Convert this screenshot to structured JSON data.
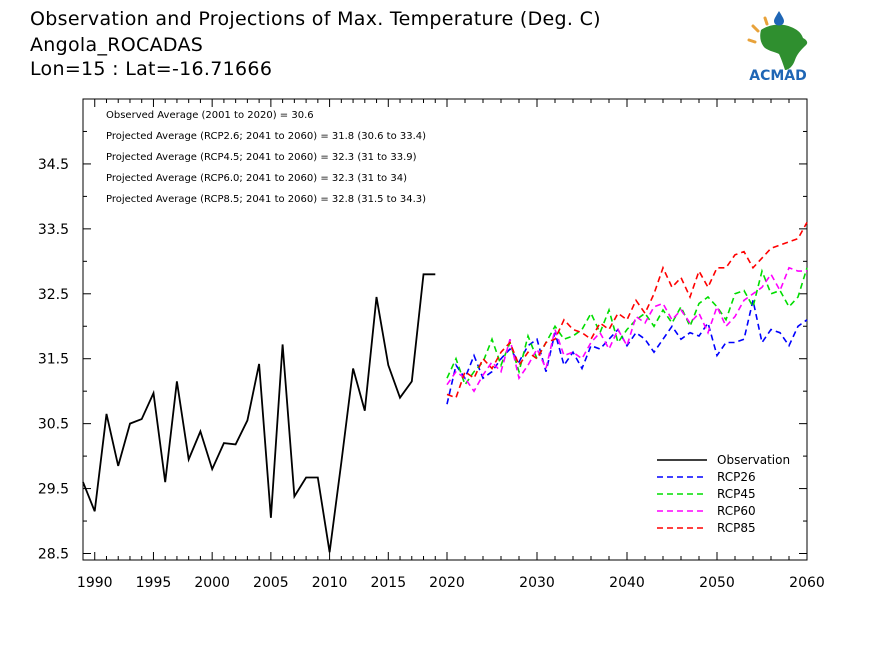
{
  "header": {
    "title_line1": "Observation and Projections of Max. Temperature (Deg. C)",
    "title_line2": "Angola_ROCADAS",
    "title_line3": "Lon=15 : Lat=-16.71666"
  },
  "logo": {
    "text": "ACMAD",
    "color": "#1f66b5",
    "map_color": "#2f8f2f",
    "accent_color": "#e8a23a"
  },
  "chart_data": {
    "type": "line",
    "xlim": [
      1989,
      2060
    ],
    "ylim": [
      28.4,
      35.5
    ],
    "x_ticks": [
      1990,
      1995,
      2000,
      2005,
      2010,
      2015,
      2020,
      2030,
      2040,
      2050,
      2060
    ],
    "y_ticks": [
      28.5,
      29.5,
      30.5,
      31.5,
      32.5,
      33.5,
      34.5
    ],
    "annotations": [
      "Observed Average (2001 to 2020) = 30.6",
      "Projected Average (RCP2.6; 2041 to 2060) = 31.8 (30.6 to 33.4)",
      "Projected Average (RCP4.5; 2041 to 2060) = 32.3 (31 to 33.9)",
      "Projected Average (RCP6.0; 2041 to 2060) = 32.3 (31 to 34)",
      "Projected Average (RCP8.5; 2041 to 2060) = 32.8 (31.5 to 34.3)"
    ],
    "legend_position": "bottom-right",
    "series": [
      {
        "name": "Observation",
        "color": "#000000",
        "dashed": false,
        "x": [
          1989,
          1990,
          1991,
          1992,
          1993,
          1994,
          1995,
          1996,
          1997,
          1998,
          1999,
          2000,
          2001,
          2002,
          2003,
          2004,
          2005,
          2006,
          2007,
          2008,
          2009,
          2010,
          2011,
          2012,
          2013,
          2014,
          2015,
          2016,
          2017,
          2018,
          2019
        ],
        "y": [
          29.6,
          29.15,
          30.65,
          29.85,
          30.5,
          30.57,
          30.97,
          29.6,
          31.15,
          29.95,
          30.38,
          29.8,
          30.2,
          30.18,
          30.55,
          31.42,
          29.05,
          31.72,
          29.38,
          29.67,
          29.67,
          28.52,
          29.9,
          31.35,
          30.7,
          32.45,
          31.4,
          30.9,
          31.15,
          32.8,
          32.8
        ]
      },
      {
        "name": "RCP26",
        "color": "#0000ff",
        "dashed": true,
        "x": [
          2020,
          2021,
          2022,
          2023,
          2024,
          2025,
          2026,
          2027,
          2028,
          2029,
          2030,
          2031,
          2032,
          2033,
          2034,
          2035,
          2036,
          2037,
          2038,
          2039,
          2040,
          2041,
          2042,
          2043,
          2044,
          2045,
          2046,
          2047,
          2048,
          2049,
          2050,
          2051,
          2052,
          2053,
          2054,
          2055,
          2056,
          2057,
          2058,
          2059,
          2060
        ],
        "y": [
          30.8,
          31.4,
          31.2,
          31.55,
          31.2,
          31.3,
          31.5,
          31.65,
          31.45,
          31.7,
          31.8,
          31.3,
          31.9,
          31.4,
          31.6,
          31.35,
          31.7,
          31.65,
          31.8,
          31.95,
          31.7,
          31.9,
          31.8,
          31.6,
          31.8,
          32.0,
          31.8,
          31.9,
          31.85,
          32.05,
          31.55,
          31.75,
          31.75,
          31.8,
          32.4,
          31.75,
          31.95,
          31.9,
          31.7,
          32.0,
          32.1
        ]
      },
      {
        "name": "RCP45",
        "color": "#00dd00",
        "dashed": true,
        "x": [
          2020,
          2021,
          2022,
          2023,
          2024,
          2025,
          2026,
          2027,
          2028,
          2029,
          2030,
          2031,
          2032,
          2033,
          2034,
          2035,
          2036,
          2037,
          2038,
          2039,
          2040,
          2041,
          2042,
          2043,
          2044,
          2045,
          2046,
          2047,
          2048,
          2049,
          2050,
          2051,
          2052,
          2053,
          2054,
          2055,
          2056,
          2057,
          2058,
          2059,
          2060
        ],
        "y": [
          31.2,
          31.5,
          31.1,
          31.3,
          31.45,
          31.8,
          31.4,
          31.75,
          31.3,
          31.85,
          31.5,
          31.75,
          32.0,
          31.8,
          31.85,
          31.95,
          32.2,
          31.9,
          32.25,
          31.75,
          31.95,
          32.1,
          32.2,
          32.0,
          32.25,
          32.05,
          32.3,
          32.0,
          32.35,
          32.45,
          32.3,
          32.1,
          32.5,
          32.55,
          32.3,
          32.85,
          32.5,
          32.55,
          32.3,
          32.45,
          32.9
        ]
      },
      {
        "name": "RCP60",
        "color": "#ff00ff",
        "dashed": true,
        "x": [
          2020,
          2021,
          2022,
          2023,
          2024,
          2025,
          2026,
          2027,
          2028,
          2029,
          2030,
          2031,
          2032,
          2033,
          2034,
          2035,
          2036,
          2037,
          2038,
          2039,
          2040,
          2041,
          2042,
          2043,
          2044,
          2045,
          2046,
          2047,
          2048,
          2049,
          2050,
          2051,
          2052,
          2053,
          2054,
          2055,
          2056,
          2057,
          2058,
          2059,
          2060
        ],
        "y": [
          31.1,
          31.3,
          31.2,
          31.0,
          31.25,
          31.45,
          31.3,
          31.8,
          31.2,
          31.4,
          31.65,
          31.35,
          31.95,
          31.55,
          31.6,
          31.5,
          31.75,
          31.9,
          31.65,
          31.95,
          31.7,
          32.15,
          32.05,
          32.3,
          32.35,
          32.1,
          32.25,
          32.05,
          32.2,
          31.9,
          32.3,
          32.0,
          32.15,
          32.4,
          32.5,
          32.6,
          32.8,
          32.55,
          32.9,
          32.85,
          32.85
        ]
      },
      {
        "name": "RCP85",
        "color": "#ff0000",
        "dashed": true,
        "x": [
          2020,
          2021,
          2022,
          2023,
          2024,
          2025,
          2026,
          2027,
          2028,
          2029,
          2030,
          2031,
          2032,
          2033,
          2034,
          2035,
          2036,
          2037,
          2038,
          2039,
          2040,
          2041,
          2042,
          2043,
          2044,
          2045,
          2046,
          2047,
          2048,
          2049,
          2050,
          2051,
          2052,
          2053,
          2054,
          2055,
          2056,
          2057,
          2058,
          2059,
          2060
        ],
        "y": [
          30.95,
          30.9,
          31.3,
          31.2,
          31.5,
          31.35,
          31.6,
          31.75,
          31.4,
          31.6,
          31.5,
          31.75,
          31.8,
          32.1,
          31.95,
          31.9,
          31.8,
          32.05,
          31.95,
          32.2,
          32.1,
          32.4,
          32.2,
          32.5,
          32.9,
          32.6,
          32.75,
          32.45,
          32.85,
          32.6,
          32.9,
          32.9,
          33.1,
          33.15,
          32.9,
          33.05,
          33.2,
          33.25,
          33.3,
          33.35,
          33.6
        ]
      }
    ]
  }
}
